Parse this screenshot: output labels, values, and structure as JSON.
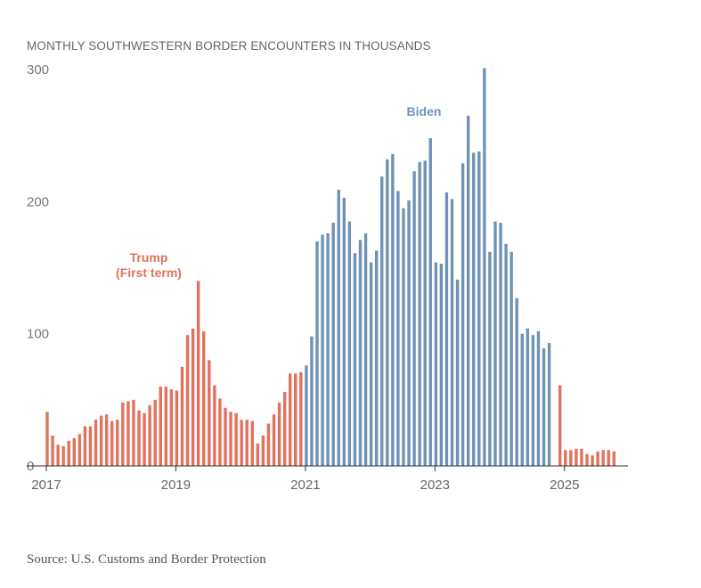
{
  "chart_data": {
    "type": "bar",
    "title": "MONTHLY SOUTHWESTERN BORDER ENCOUNTERS IN THOUSANDS",
    "source": "Source: U.S. Customs and Border Protection",
    "ylim": [
      0,
      300
    ],
    "y_ticks": [
      "300",
      "200",
      "100",
      "0"
    ],
    "x_ticks": [
      "2017",
      "2019",
      "2021",
      "2023",
      "2025"
    ],
    "grid": false,
    "annotations": [
      {
        "lines": [
          "Trump",
          "(First term)"
        ],
        "color": "#e0735e"
      },
      {
        "lines": [
          "Biden"
        ],
        "color": "#6f93b4"
      }
    ],
    "series": [
      {
        "name": "Trump (First term)",
        "color": "#e0735e",
        "start": "2017-01",
        "values": [
          41,
          23,
          16,
          15,
          19,
          21,
          24,
          30,
          30,
          35,
          38,
          39,
          34,
          35,
          48,
          49,
          50,
          42,
          40,
          46,
          50,
          60,
          60,
          58,
          57,
          75,
          99,
          104,
          140,
          102,
          80,
          61,
          51,
          44,
          41,
          40,
          35,
          35,
          34,
          17,
          23,
          32,
          39,
          48,
          56,
          70,
          70,
          71
        ]
      },
      {
        "name": "Biden",
        "color": "#6f93b4",
        "start": "2021-01",
        "values": [
          76,
          98,
          170,
          175,
          176,
          184,
          209,
          203,
          185,
          161,
          171,
          176,
          154,
          163,
          219,
          232,
          236,
          208,
          195,
          201,
          223,
          230,
          231,
          248,
          154,
          153,
          207,
          202,
          141,
          229,
          265,
          237,
          238,
          301,
          162,
          185,
          184,
          168,
          162,
          127,
          100,
          104,
          99,
          102,
          89,
          93
        ]
      },
      {
        "name": "2025",
        "color": "#e0735e",
        "start": "2024-12",
        "values": [
          61,
          12,
          12,
          13,
          13,
          9,
          8,
          11,
          12,
          12,
          11
        ]
      }
    ]
  }
}
